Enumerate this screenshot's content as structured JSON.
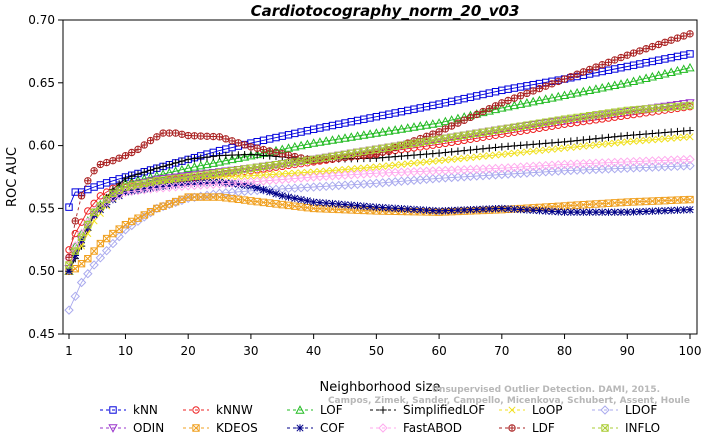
{
  "chart_data": {
    "type": "line",
    "title": "Cardiotocography_norm_20_v03",
    "xlabel": "Neighborhood size",
    "ylabel": "ROC AUC",
    "xlim": [
      1,
      100
    ],
    "ylim": [
      0.45,
      0.7
    ],
    "x_ticks": [
      1,
      10,
      20,
      30,
      40,
      50,
      60,
      70,
      80,
      90,
      100
    ],
    "y_ticks": [
      "0.45",
      "0.50",
      "0.55",
      "0.60",
      "0.65",
      "0.70"
    ],
    "grid": false,
    "legend_position": "bottom",
    "watermark": [
      "Unsupervised Outlier Detection. DAMI, 2015.",
      "Campos, Zimek, Sander, Campello, Micenkova, Schubert, Assent, Houle"
    ],
    "series": [
      {
        "name": "kNN",
        "color": "#0000dd",
        "marker": "square",
        "dash": "",
        "points": [
          [
            1,
            0.551
          ],
          [
            2,
            0.563
          ],
          [
            3,
            0.563
          ],
          [
            5,
            0.567
          ],
          [
            8,
            0.572
          ],
          [
            10,
            0.575
          ],
          [
            15,
            0.582
          ],
          [
            20,
            0.589
          ],
          [
            25,
            0.596
          ],
          [
            30,
            0.602
          ],
          [
            40,
            0.613
          ],
          [
            50,
            0.623
          ],
          [
            60,
            0.633
          ],
          [
            70,
            0.644
          ],
          [
            80,
            0.653
          ],
          [
            90,
            0.663
          ],
          [
            100,
            0.673
          ]
        ]
      },
      {
        "name": "kNNW",
        "color": "#ee2222",
        "marker": "circle",
        "dash": "",
        "points": [
          [
            1,
            0.517
          ],
          [
            2,
            0.53
          ],
          [
            4,
            0.548
          ],
          [
            6,
            0.56
          ],
          [
            8,
            0.566
          ],
          [
            10,
            0.569
          ],
          [
            15,
            0.572
          ],
          [
            20,
            0.574
          ],
          [
            30,
            0.58
          ],
          [
            40,
            0.587
          ],
          [
            50,
            0.594
          ],
          [
            60,
            0.601
          ],
          [
            70,
            0.609
          ],
          [
            80,
            0.617
          ],
          [
            90,
            0.624
          ],
          [
            100,
            0.631
          ]
        ]
      },
      {
        "name": "LOF",
        "color": "#22bb22",
        "marker": "triangle",
        "dash": "",
        "points": [
          [
            1,
            0.5
          ],
          [
            2,
            0.52
          ],
          [
            4,
            0.54
          ],
          [
            6,
            0.553
          ],
          [
            8,
            0.563
          ],
          [
            10,
            0.57
          ],
          [
            15,
            0.576
          ],
          [
            20,
            0.582
          ],
          [
            30,
            0.592
          ],
          [
            40,
            0.602
          ],
          [
            50,
            0.61
          ],
          [
            60,
            0.618
          ],
          [
            70,
            0.63
          ],
          [
            80,
            0.64
          ],
          [
            90,
            0.65
          ],
          [
            100,
            0.662
          ]
        ]
      },
      {
        "name": "SimplifiedLOF",
        "color": "#000000",
        "marker": "plus",
        "dash": "",
        "points": [
          [
            1,
            0.5
          ],
          [
            3,
            0.52
          ],
          [
            5,
            0.545
          ],
          [
            8,
            0.565
          ],
          [
            10,
            0.574
          ],
          [
            15,
            0.582
          ],
          [
            20,
            0.589
          ],
          [
            25,
            0.592
          ],
          [
            30,
            0.593
          ],
          [
            35,
            0.591
          ],
          [
            40,
            0.589
          ],
          [
            50,
            0.59
          ],
          [
            60,
            0.594
          ],
          [
            70,
            0.599
          ],
          [
            80,
            0.603
          ],
          [
            90,
            0.608
          ],
          [
            100,
            0.612
          ]
        ]
      },
      {
        "name": "LoOP",
        "color": "#f0e020",
        "marker": "x",
        "dash": "",
        "points": [
          [
            1,
            0.505
          ],
          [
            3,
            0.52
          ],
          [
            5,
            0.54
          ],
          [
            8,
            0.558
          ],
          [
            10,
            0.565
          ],
          [
            15,
            0.571
          ],
          [
            20,
            0.574
          ],
          [
            30,
            0.576
          ],
          [
            40,
            0.579
          ],
          [
            50,
            0.583
          ],
          [
            60,
            0.588
          ],
          [
            70,
            0.593
          ],
          [
            80,
            0.598
          ],
          [
            90,
            0.603
          ],
          [
            100,
            0.607
          ]
        ]
      },
      {
        "name": "LDOF",
        "color": "#aaaaee",
        "marker": "diamond",
        "dash": "",
        "points": [
          [
            1,
            0.469
          ],
          [
            2,
            0.48
          ],
          [
            3,
            0.491
          ],
          [
            5,
            0.505
          ],
          [
            8,
            0.522
          ],
          [
            10,
            0.533
          ],
          [
            15,
            0.55
          ],
          [
            20,
            0.558
          ],
          [
            25,
            0.562
          ],
          [
            30,
            0.564
          ],
          [
            40,
            0.567
          ],
          [
            50,
            0.57
          ],
          [
            60,
            0.574
          ],
          [
            70,
            0.577
          ],
          [
            80,
            0.58
          ],
          [
            90,
            0.582
          ],
          [
            100,
            0.584
          ]
        ]
      },
      {
        "name": "ODIN",
        "color": "#9933cc",
        "marker": "triangle-down",
        "dash": "",
        "points": [
          [
            1,
            0.502
          ],
          [
            3,
            0.525
          ],
          [
            5,
            0.545
          ],
          [
            8,
            0.561
          ],
          [
            10,
            0.567
          ],
          [
            15,
            0.573
          ],
          [
            20,
            0.576
          ],
          [
            30,
            0.582
          ],
          [
            40,
            0.589
          ],
          [
            50,
            0.597
          ],
          [
            60,
            0.605
          ],
          [
            70,
            0.613
          ],
          [
            80,
            0.62
          ],
          [
            90,
            0.627
          ],
          [
            100,
            0.634
          ]
        ]
      },
      {
        "name": "KDEOS",
        "color": "#f0a020",
        "marker": "square-x",
        "dash": "",
        "points": [
          [
            1,
            0.5
          ],
          [
            2,
            0.502
          ],
          [
            4,
            0.51
          ],
          [
            6,
            0.522
          ],
          [
            8,
            0.53
          ],
          [
            10,
            0.537
          ],
          [
            15,
            0.55
          ],
          [
            20,
            0.559
          ],
          [
            25,
            0.559
          ],
          [
            30,
            0.556
          ],
          [
            35,
            0.553
          ],
          [
            40,
            0.55
          ],
          [
            50,
            0.548
          ],
          [
            60,
            0.547
          ],
          [
            70,
            0.549
          ],
          [
            80,
            0.552
          ],
          [
            90,
            0.555
          ],
          [
            100,
            0.557
          ]
        ]
      },
      {
        "name": "COF",
        "color": "#000088",
        "marker": "star",
        "dash": "",
        "points": [
          [
            1,
            0.5
          ],
          [
            3,
            0.525
          ],
          [
            5,
            0.545
          ],
          [
            8,
            0.557
          ],
          [
            10,
            0.563
          ],
          [
            15,
            0.567
          ],
          [
            20,
            0.57
          ],
          [
            25,
            0.571
          ],
          [
            30,
            0.568
          ],
          [
            35,
            0.56
          ],
          [
            40,
            0.555
          ],
          [
            50,
            0.551
          ],
          [
            60,
            0.548
          ],
          [
            70,
            0.55
          ],
          [
            80,
            0.547
          ],
          [
            90,
            0.547
          ],
          [
            100,
            0.549
          ]
        ]
      },
      {
        "name": "FastABOD",
        "color": "#ffaaee",
        "marker": "diamond",
        "dash": "",
        "points": [
          [
            1,
            0.51
          ],
          [
            3,
            0.53
          ],
          [
            5,
            0.548
          ],
          [
            8,
            0.559
          ],
          [
            10,
            0.563
          ],
          [
            15,
            0.566
          ],
          [
            20,
            0.568
          ],
          [
            30,
            0.571
          ],
          [
            40,
            0.575
          ],
          [
            50,
            0.578
          ],
          [
            60,
            0.58
          ],
          [
            70,
            0.582
          ],
          [
            80,
            0.585
          ],
          [
            90,
            0.587
          ],
          [
            100,
            0.589
          ]
        ]
      },
      {
        "name": "LDF",
        "color": "#aa2222",
        "marker": "circle-plus",
        "dash": "3,3",
        "points": [
          [
            1,
            0.511
          ],
          [
            2,
            0.54
          ],
          [
            3,
            0.56
          ],
          [
            4,
            0.572
          ],
          [
            5,
            0.58
          ],
          [
            6,
            0.585
          ],
          [
            8,
            0.588
          ],
          [
            10,
            0.592
          ],
          [
            12,
            0.597
          ],
          [
            14,
            0.604
          ],
          [
            16,
            0.61
          ],
          [
            18,
            0.61
          ],
          [
            20,
            0.608
          ],
          [
            25,
            0.607
          ],
          [
            30,
            0.599
          ],
          [
            40,
            0.588
          ],
          [
            50,
            0.593
          ],
          [
            60,
            0.611
          ],
          [
            70,
            0.634
          ],
          [
            80,
            0.653
          ],
          [
            90,
            0.672
          ],
          [
            100,
            0.689
          ]
        ]
      },
      {
        "name": "INFLO",
        "color": "#aacc33",
        "marker": "square-x",
        "dash": "",
        "points": [
          [
            1,
            0.505
          ],
          [
            3,
            0.527
          ],
          [
            5,
            0.547
          ],
          [
            8,
            0.562
          ],
          [
            10,
            0.567
          ],
          [
            15,
            0.572
          ],
          [
            20,
            0.575
          ],
          [
            30,
            0.582
          ],
          [
            40,
            0.589
          ],
          [
            50,
            0.597
          ],
          [
            60,
            0.605
          ],
          [
            70,
            0.613
          ],
          [
            80,
            0.621
          ],
          [
            90,
            0.628
          ],
          [
            100,
            0.632
          ]
        ]
      }
    ]
  }
}
